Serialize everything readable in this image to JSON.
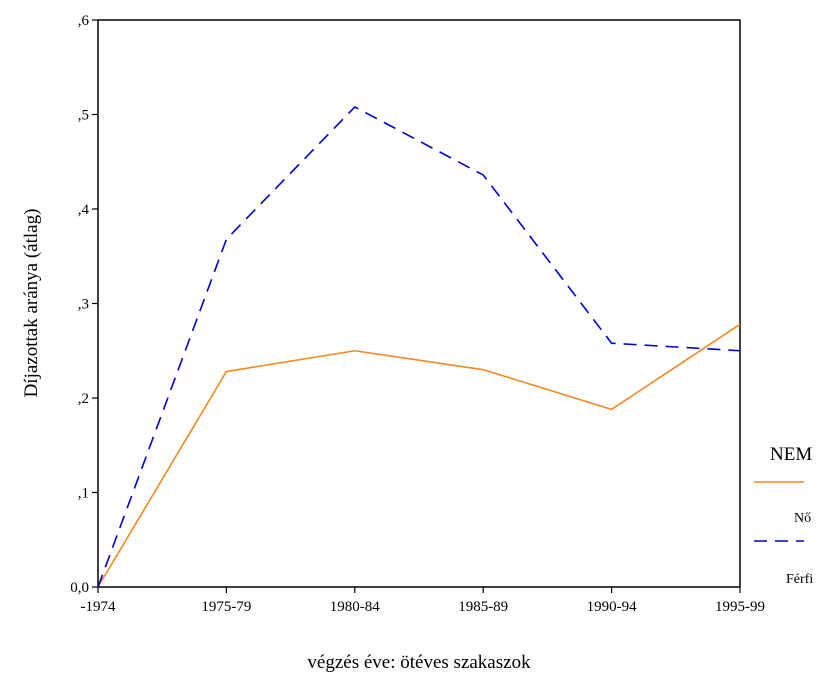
{
  "chart_data": {
    "type": "line",
    "categories": [
      "-1974",
      "1975-79",
      "1980-84",
      "1985-89",
      "1990-94",
      "1995-99"
    ],
    "series": [
      {
        "name": "Nő",
        "color": "#f28a1e",
        "dash": "solid",
        "values": [
          0.0,
          0.228,
          0.25,
          0.23,
          0.188,
          0.278
        ]
      },
      {
        "name": "Férfi",
        "color": "#0000cc",
        "dash": "dashed",
        "values": [
          0.0,
          0.368,
          0.508,
          0.436,
          0.258,
          0.25
        ]
      }
    ],
    "title": "",
    "xlabel": "végzés éve: ötéves szakaszok",
    "ylabel": "Díjazottak aránya  (átlag)",
    "ylim": [
      0,
      0.6
    ],
    "yticks": [
      0,
      0.1,
      0.2,
      0.3,
      0.4,
      0.5,
      0.6
    ],
    "ytick_labels": [
      "0,0",
      ",1",
      ",2",
      ",3",
      ",4",
      ",5",
      ",6"
    ],
    "legend": {
      "title": "NEM",
      "position": "right"
    },
    "grid": false
  }
}
